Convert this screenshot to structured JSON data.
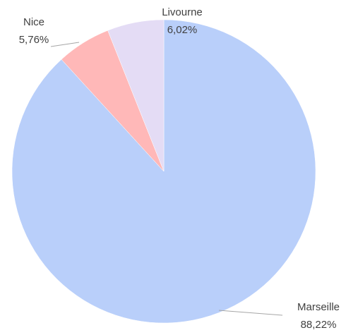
{
  "chart_data": {
    "type": "pie",
    "categories": [
      "Marseille",
      "Nice",
      "Livourne"
    ],
    "values": [
      88.22,
      5.76,
      6.02
    ],
    "value_labels": [
      "88,22%",
      "5,76%",
      "6,02%"
    ],
    "colors": [
      "#b9cffa",
      "#ffb8b8",
      "#e4dcf5"
    ]
  }
}
